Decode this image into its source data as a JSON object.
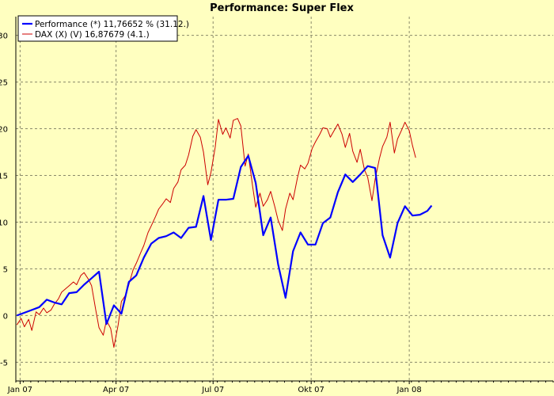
{
  "colors": {
    "background": "#ffffc0",
    "grid": "#8a8a6a",
    "performance": "#0000ff",
    "dax": "#cc0000"
  },
  "chart_data": {
    "type": "line",
    "title": "Performance: Super Flex",
    "xlabel": "",
    "ylabel": "",
    "xlim": [
      "2006-12-28",
      "2008-05-15"
    ],
    "ylim": [
      -7,
      32
    ],
    "grid": true,
    "legend_position": "top-left",
    "x_ticks": [
      {
        "label": "Jan 07",
        "date": "2007-01-01"
      },
      {
        "label": "Apr 07",
        "date": "2007-04-01"
      },
      {
        "label": "Jul 07",
        "date": "2007-07-01"
      },
      {
        "label": "Okt 07",
        "date": "2007-10-01"
      },
      {
        "label": "Jan 08",
        "date": "2008-01-01"
      }
    ],
    "y_ticks": [
      -5,
      0,
      5,
      10,
      15,
      20,
      25,
      30
    ],
    "series": [
      {
        "name": "Performance (*) 11,76652 % (31.12.)",
        "color": "#0000ff",
        "points": [
          [
            "2006-12-29",
            0.0
          ],
          [
            "2007-01-05",
            0.3
          ],
          [
            "2007-01-12",
            0.6
          ],
          [
            "2007-01-19",
            0.9
          ],
          [
            "2007-01-26",
            1.7
          ],
          [
            "2007-02-02",
            1.4
          ],
          [
            "2007-02-09",
            1.2
          ],
          [
            "2007-02-16",
            2.4
          ],
          [
            "2007-02-23",
            2.5
          ],
          [
            "2007-03-02",
            3.3
          ],
          [
            "2007-03-09",
            4.0
          ],
          [
            "2007-03-16",
            4.7
          ],
          [
            "2007-03-23",
            -0.9
          ],
          [
            "2007-03-30",
            1.1
          ],
          [
            "2007-04-06",
            0.2
          ],
          [
            "2007-04-13",
            3.6
          ],
          [
            "2007-04-20",
            4.3
          ],
          [
            "2007-04-27",
            6.2
          ],
          [
            "2007-05-04",
            7.7
          ],
          [
            "2007-05-11",
            8.3
          ],
          [
            "2007-05-18",
            8.5
          ],
          [
            "2007-05-25",
            8.9
          ],
          [
            "2007-06-01",
            8.3
          ],
          [
            "2007-06-08",
            9.4
          ],
          [
            "2007-06-15",
            9.5
          ],
          [
            "2007-06-22",
            12.8
          ],
          [
            "2007-06-29",
            8.1
          ],
          [
            "2007-07-06",
            12.4
          ],
          [
            "2007-07-13",
            12.4
          ],
          [
            "2007-07-20",
            12.5
          ],
          [
            "2007-07-27",
            15.9
          ],
          [
            "2007-08-03",
            17.1
          ],
          [
            "2007-08-10",
            14.2
          ],
          [
            "2007-08-17",
            8.6
          ],
          [
            "2007-08-24",
            10.5
          ],
          [
            "2007-08-31",
            5.5
          ],
          [
            "2007-09-07",
            1.9
          ],
          [
            "2007-09-14",
            6.9
          ],
          [
            "2007-09-21",
            8.9
          ],
          [
            "2007-09-28",
            7.6
          ],
          [
            "2007-10-05",
            7.6
          ],
          [
            "2007-10-12",
            9.9
          ],
          [
            "2007-10-19",
            10.5
          ],
          [
            "2007-10-26",
            13.2
          ],
          [
            "2007-11-02",
            15.1
          ],
          [
            "2007-11-09",
            14.3
          ],
          [
            "2007-11-16",
            15.1
          ],
          [
            "2007-11-23",
            16.0
          ],
          [
            "2007-11-30",
            15.8
          ],
          [
            "2007-12-07",
            8.6
          ],
          [
            "2007-12-14",
            6.2
          ],
          [
            "2007-12-21",
            9.9
          ],
          [
            "2007-12-28",
            11.7
          ],
          [
            "2008-01-04",
            10.7
          ],
          [
            "2008-01-11",
            10.8
          ],
          [
            "2008-01-18",
            11.2
          ],
          [
            "2008-01-22",
            11.77
          ]
        ]
      },
      {
        "name": "DAX (X) (V) 16,87679 (4.1.)",
        "color": "#cc0000",
        "points": [
          [
            "2006-12-29",
            -1.0
          ],
          [
            "2007-01-02",
            -0.3
          ],
          [
            "2007-01-05",
            -1.2
          ],
          [
            "2007-01-09",
            -0.4
          ],
          [
            "2007-01-12",
            -1.6
          ],
          [
            "2007-01-16",
            0.4
          ],
          [
            "2007-01-19",
            0.1
          ],
          [
            "2007-01-23",
            0.8
          ],
          [
            "2007-01-26",
            0.3
          ],
          [
            "2007-01-30",
            0.6
          ],
          [
            "2007-02-02",
            1.2
          ],
          [
            "2007-02-06",
            1.8
          ],
          [
            "2007-02-09",
            2.5
          ],
          [
            "2007-02-13",
            2.9
          ],
          [
            "2007-02-16",
            3.2
          ],
          [
            "2007-02-20",
            3.6
          ],
          [
            "2007-02-23",
            3.3
          ],
          [
            "2007-02-27",
            4.3
          ],
          [
            "2007-03-02",
            4.6
          ],
          [
            "2007-03-06",
            3.9
          ],
          [
            "2007-03-09",
            3.2
          ],
          [
            "2007-03-13",
            0.6
          ],
          [
            "2007-03-16",
            -1.3
          ],
          [
            "2007-03-20",
            -2.1
          ],
          [
            "2007-03-23",
            -0.5
          ],
          [
            "2007-03-27",
            -1.4
          ],
          [
            "2007-03-30",
            -3.4
          ],
          [
            "2007-04-03",
            -1.0
          ],
          [
            "2007-04-06",
            1.5
          ],
          [
            "2007-04-10",
            2.2
          ],
          [
            "2007-04-13",
            3.3
          ],
          [
            "2007-04-17",
            4.9
          ],
          [
            "2007-04-20",
            5.6
          ],
          [
            "2007-04-24",
            6.7
          ],
          [
            "2007-04-27",
            7.5
          ],
          [
            "2007-05-01",
            8.9
          ],
          [
            "2007-05-04",
            9.6
          ],
          [
            "2007-05-08",
            10.6
          ],
          [
            "2007-05-11",
            11.4
          ],
          [
            "2007-05-15",
            12.0
          ],
          [
            "2007-05-18",
            12.5
          ],
          [
            "2007-05-22",
            12.1
          ],
          [
            "2007-05-25",
            13.6
          ],
          [
            "2007-05-29",
            14.3
          ],
          [
            "2007-06-01",
            15.6
          ],
          [
            "2007-06-05",
            16.1
          ],
          [
            "2007-06-08",
            17.2
          ],
          [
            "2007-06-12",
            19.2
          ],
          [
            "2007-06-15",
            19.9
          ],
          [
            "2007-06-19",
            19.1
          ],
          [
            "2007-06-22",
            17.5
          ],
          [
            "2007-06-26",
            14.0
          ],
          [
            "2007-06-29",
            15.3
          ],
          [
            "2007-07-03",
            18.0
          ],
          [
            "2007-07-06",
            21.0
          ],
          [
            "2007-07-10",
            19.4
          ],
          [
            "2007-07-13",
            20.1
          ],
          [
            "2007-07-17",
            19.0
          ],
          [
            "2007-07-20",
            20.9
          ],
          [
            "2007-07-24",
            21.1
          ],
          [
            "2007-07-27",
            20.3
          ],
          [
            "2007-07-31",
            16.0
          ],
          [
            "2007-08-03",
            17.3
          ],
          [
            "2007-08-07",
            13.9
          ],
          [
            "2007-08-10",
            11.6
          ],
          [
            "2007-08-14",
            13.1
          ],
          [
            "2007-08-17",
            11.7
          ],
          [
            "2007-08-21",
            12.4
          ],
          [
            "2007-08-24",
            13.3
          ],
          [
            "2007-08-28",
            11.6
          ],
          [
            "2007-08-31",
            10.2
          ],
          [
            "2007-09-04",
            9.1
          ],
          [
            "2007-09-07",
            11.4
          ],
          [
            "2007-09-11",
            13.1
          ],
          [
            "2007-09-14",
            12.4
          ],
          [
            "2007-09-18",
            14.7
          ],
          [
            "2007-09-21",
            16.1
          ],
          [
            "2007-09-25",
            15.7
          ],
          [
            "2007-09-28",
            16.3
          ],
          [
            "2007-10-02",
            17.9
          ],
          [
            "2007-10-05",
            18.6
          ],
          [
            "2007-10-09",
            19.4
          ],
          [
            "2007-10-12",
            20.1
          ],
          [
            "2007-10-16",
            20.0
          ],
          [
            "2007-10-19",
            19.1
          ],
          [
            "2007-10-23",
            19.9
          ],
          [
            "2007-10-26",
            20.5
          ],
          [
            "2007-10-30",
            19.4
          ],
          [
            "2007-11-02",
            18.0
          ],
          [
            "2007-11-06",
            19.5
          ],
          [
            "2007-11-09",
            17.6
          ],
          [
            "2007-11-13",
            16.4
          ],
          [
            "2007-11-16",
            17.8
          ],
          [
            "2007-11-20",
            15.6
          ],
          [
            "2007-11-23",
            14.8
          ],
          [
            "2007-11-27",
            12.3
          ],
          [
            "2007-11-30",
            14.6
          ],
          [
            "2007-12-04",
            16.8
          ],
          [
            "2007-12-07",
            18.1
          ],
          [
            "2007-12-11",
            19.1
          ],
          [
            "2007-12-14",
            20.7
          ],
          [
            "2007-12-18",
            17.4
          ],
          [
            "2007-12-21",
            18.9
          ],
          [
            "2007-12-25",
            19.9
          ],
          [
            "2007-12-28",
            20.7
          ],
          [
            "2008-01-01",
            19.8
          ],
          [
            "2008-01-04",
            18.2
          ],
          [
            "2008-01-07",
            16.9
          ]
        ]
      }
    ]
  }
}
